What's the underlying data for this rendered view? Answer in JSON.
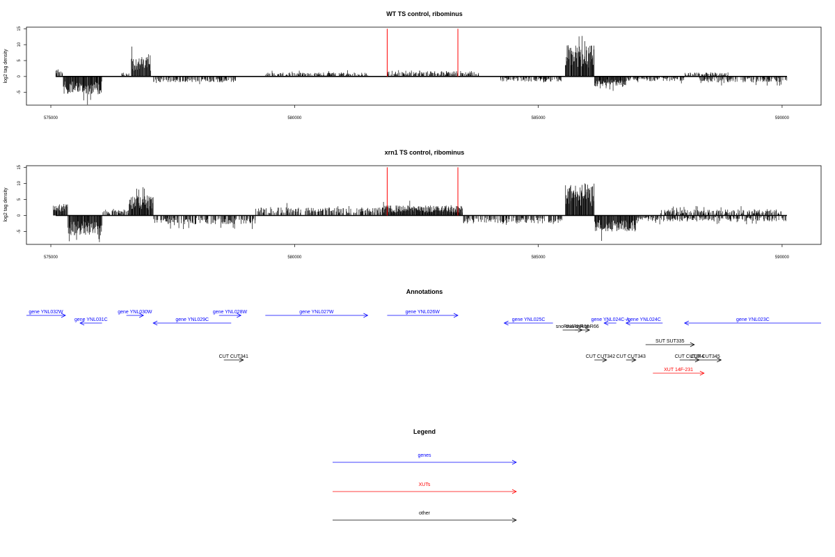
{
  "chart_data": [
    {
      "type": "bar",
      "title": "WT TS control, ribominus",
      "ylabel": "log2 tag density",
      "xlabel": "",
      "xlim": [
        574500,
        590800
      ],
      "ylim": [
        -9,
        15.5
      ],
      "x_ticks": [
        575000,
        580000,
        585000,
        590000
      ],
      "y_ticks": [
        -5,
        0,
        5,
        10,
        15
      ],
      "markers": [
        581900,
        583350
      ],
      "marker_color": "#ff0000",
      "coverage_regions": [
        {
          "start": 575100,
          "end": 575250,
          "strand": "+",
          "level": 2
        },
        {
          "start": 575250,
          "end": 576050,
          "strand": "-",
          "level": 4.5
        },
        {
          "start": 576450,
          "end": 576650,
          "strand": "+",
          "level": 1
        },
        {
          "start": 576650,
          "end": 577050,
          "strand": "+",
          "level": 5
        },
        {
          "start": 577050,
          "end": 578800,
          "strand": "-",
          "level": 1.5
        },
        {
          "start": 579400,
          "end": 581500,
          "strand": "+",
          "level": 1
        },
        {
          "start": 581900,
          "end": 583350,
          "strand": "+",
          "level": 1.5
        },
        {
          "start": 583400,
          "end": 583800,
          "strand": "+",
          "level": 1
        },
        {
          "start": 584200,
          "end": 585500,
          "strand": "-",
          "level": 1.3
        },
        {
          "start": 585550,
          "end": 586150,
          "strand": "+",
          "level": 8
        },
        {
          "start": 586150,
          "end": 586800,
          "strand": "-",
          "level": 2.5
        },
        {
          "start": 586800,
          "end": 588000,
          "strand": "-",
          "level": 1.2
        },
        {
          "start": 588000,
          "end": 588900,
          "strand": "+",
          "level": 1
        },
        {
          "start": 588300,
          "end": 590100,
          "strand": "-",
          "level": 1.5
        }
      ]
    },
    {
      "type": "bar",
      "title": "xrn1 TS control, ribominus",
      "ylabel": "log2 tag density",
      "xlabel": "",
      "xlim": [
        574500,
        590800
      ],
      "ylim": [
        -9,
        15.5
      ],
      "x_ticks": [
        575000,
        580000,
        585000,
        590000
      ],
      "y_ticks": [
        -5,
        0,
        5,
        10,
        15
      ],
      "markers": [
        581900,
        583350
      ],
      "marker_color": "#ff0000",
      "coverage_regions": [
        {
          "start": 575050,
          "end": 575350,
          "strand": "+",
          "level": 3
        },
        {
          "start": 575350,
          "end": 576050,
          "strand": "-",
          "level": 5
        },
        {
          "start": 576050,
          "end": 576600,
          "strand": "+",
          "level": 1.5
        },
        {
          "start": 576600,
          "end": 577100,
          "strand": "+",
          "level": 5
        },
        {
          "start": 577100,
          "end": 579200,
          "strand": "-",
          "level": 2.2
        },
        {
          "start": 579200,
          "end": 581800,
          "strand": "+",
          "level": 2
        },
        {
          "start": 581800,
          "end": 583450,
          "strand": "+",
          "level": 2.5
        },
        {
          "start": 583450,
          "end": 585500,
          "strand": "-",
          "level": 2
        },
        {
          "start": 585550,
          "end": 586150,
          "strand": "+",
          "level": 8
        },
        {
          "start": 586150,
          "end": 587000,
          "strand": "-",
          "level": 4
        },
        {
          "start": 587000,
          "end": 590100,
          "strand": "-",
          "level": 1.5
        },
        {
          "start": 587500,
          "end": 590000,
          "strand": "+",
          "level": 1.5
        }
      ]
    }
  ],
  "annotations": {
    "title": "Annotations",
    "genes": [
      {
        "label": "gene YNL032W",
        "start": 574500,
        "end": 575300,
        "strand": "+",
        "row": 0
      },
      {
        "label": "gene YNL031C",
        "start": 575600,
        "end": 576050,
        "strand": "-",
        "row": 1
      },
      {
        "label": "gene YNL030W",
        "start": 576550,
        "end": 576900,
        "strand": "+",
        "row": 0
      },
      {
        "label": "gene YNL029C",
        "start": 577100,
        "end": 578700,
        "strand": "-",
        "row": 1
      },
      {
        "label": "gene YNL028W",
        "start": 578450,
        "end": 578900,
        "strand": "+",
        "row": 0
      },
      {
        "label": "gene YNL027W",
        "start": 579400,
        "end": 581500,
        "strand": "+",
        "row": 0
      },
      {
        "label": "gene YNL026W",
        "start": 581900,
        "end": 583350,
        "strand": "+",
        "row": 0
      },
      {
        "label": "gene YNL025C",
        "start": 584300,
        "end": 585300,
        "strand": "-",
        "row": 1
      },
      {
        "label": "gene YNL024C-A",
        "start": 586350,
        "end": 586600,
        "strand": "-",
        "row": 1
      },
      {
        "label": "gene YNL024C",
        "start": 586800,
        "end": 587550,
        "strand": "-",
        "row": 1
      },
      {
        "label": "gene YNL023C",
        "start": 588000,
        "end": 590800,
        "strand": "-",
        "row": 1
      }
    ],
    "others": [
      {
        "label": "snoRNA snR66",
        "start": 585500,
        "end": 585900,
        "strand": "+",
        "row": 2
      },
      {
        "label": "snoRNA snR66",
        "start": 585750,
        "end": 586050,
        "strand": "+",
        "row": 2
      },
      {
        "label": "SUT SUT335",
        "start": 587200,
        "end": 588200,
        "strand": "+",
        "row": 3
      },
      {
        "label": "CUT CUT341",
        "start": 578550,
        "end": 578950,
        "strand": "+",
        "row": 4
      },
      {
        "label": "CUT CUT342",
        "start": 586150,
        "end": 586400,
        "strand": "+",
        "row": 4
      },
      {
        "label": "CUT CUT343",
        "start": 586800,
        "end": 587000,
        "strand": "+",
        "row": 4
      },
      {
        "label": "CUT CUT344",
        "start": 587900,
        "end": 588300,
        "strand": "+",
        "row": 4
      },
      {
        "label": "CUT CUT345",
        "start": 588100,
        "end": 588750,
        "strand": "+",
        "row": 4
      }
    ],
    "xuts": [
      {
        "label": "XUT 14F-231",
        "start": 587350,
        "end": 588400,
        "strand": "+",
        "row": 5
      }
    ]
  },
  "legend": {
    "title": "Legend",
    "items": [
      {
        "label": "genes",
        "color": "#0000ff"
      },
      {
        "label": "XUTs",
        "color": "#ff0000"
      },
      {
        "label": "other",
        "color": "#000000"
      }
    ]
  },
  "colors": {
    "gene": "#0000ff",
    "xut": "#ff0000",
    "other": "#000000",
    "marker": "#ff0000"
  }
}
